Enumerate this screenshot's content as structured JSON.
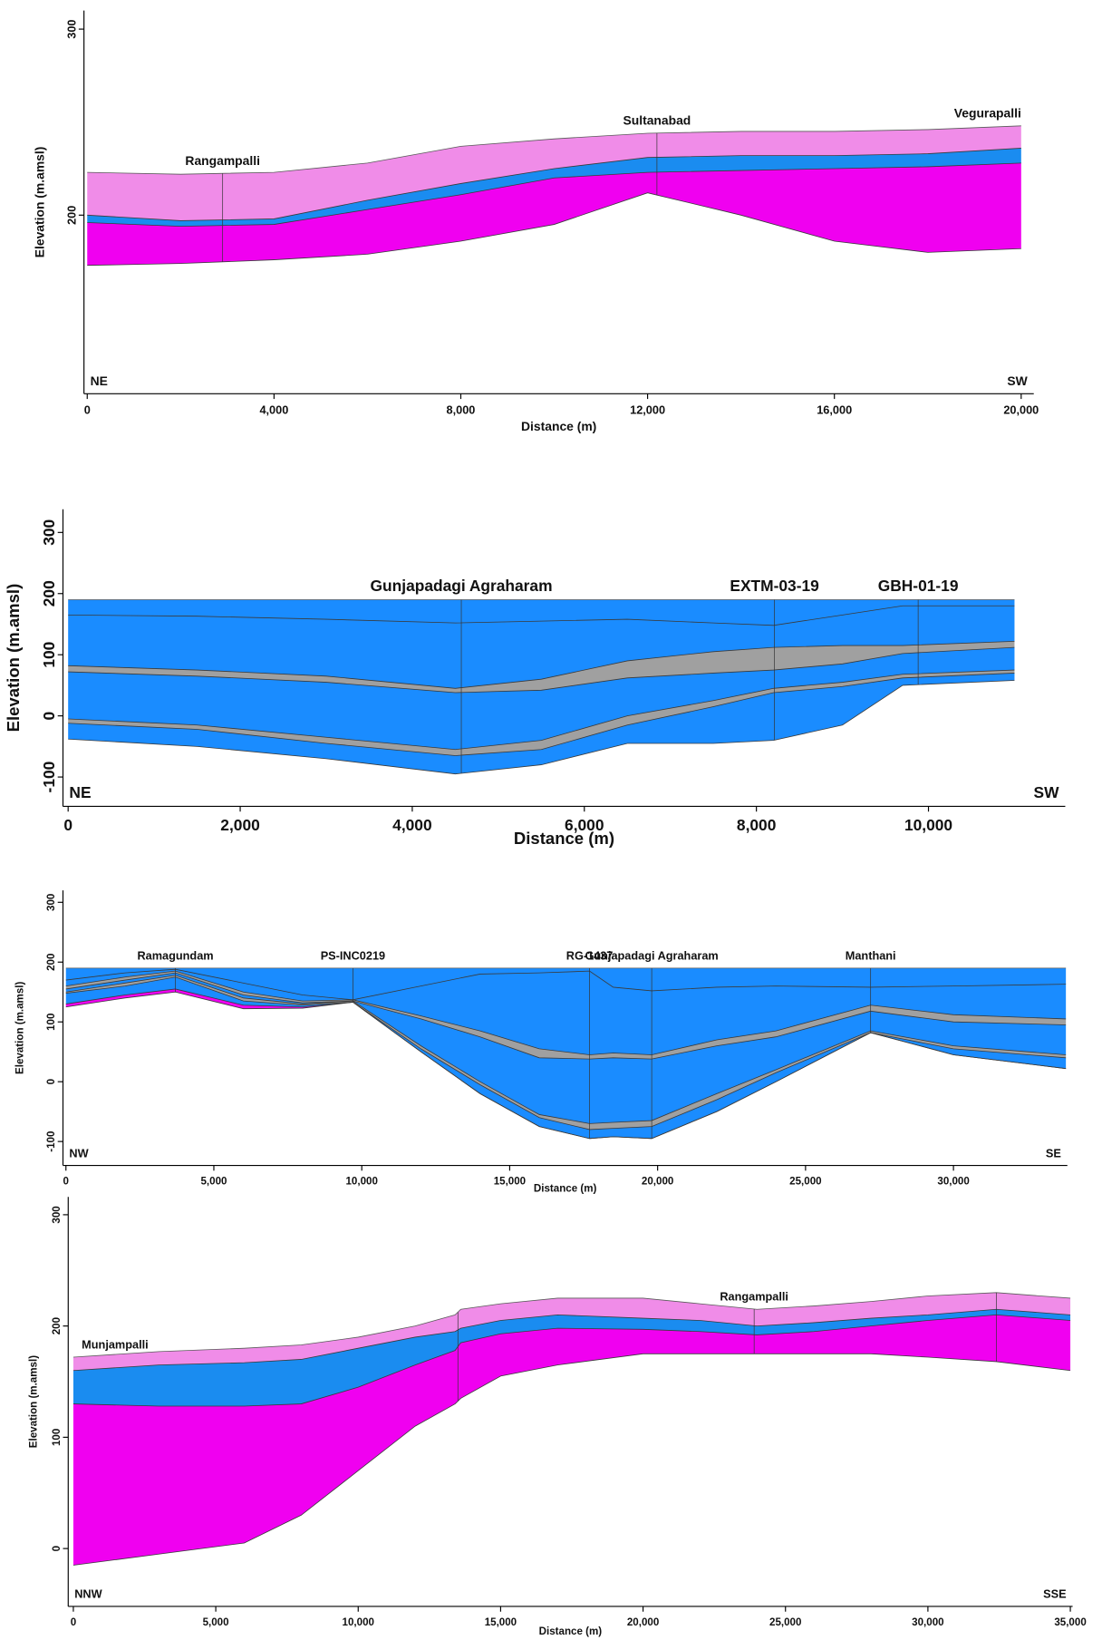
{
  "chart_data": [
    {
      "type": "area",
      "xlabel": "Distance (m)",
      "ylabel": "Elevation (m.amsl)",
      "xlim": [
        -70,
        20270
      ],
      "ylim": [
        104,
        310
      ],
      "xticks": [
        0,
        {
          "value": 4000,
          "label": "4,000"
        },
        {
          "value": 8000,
          "label": "8,000"
        },
        {
          "value": 12000,
          "label": "12,000"
        },
        {
          "value": 16000,
          "label": "16,000"
        },
        {
          "value": 20000,
          "label": "20,000"
        }
      ],
      "yticks": [
        200,
        300
      ],
      "x": [
        0,
        2000,
        4000,
        6000,
        8000,
        10000,
        12000,
        14000,
        16000,
        18000,
        20000
      ],
      "series": [
        {
          "color": "#f08ce8",
          "values": [
            223,
            222,
            223,
            228,
            237,
            241,
            244,
            245,
            245,
            246,
            248
          ]
        },
        {
          "color": "#1a8cf0",
          "values": [
            200,
            197,
            198,
            208,
            217,
            225,
            231,
            232,
            232,
            233,
            236
          ]
        },
        {
          "color": "#f000f0",
          "values": [
            196,
            194,
            195,
            203,
            211,
            220,
            223,
            224,
            225,
            226,
            228
          ]
        },
        {
          "values": [
            173,
            174,
            176,
            179,
            186,
            195,
            212,
            200,
            186,
            180,
            182
          ]
        }
      ],
      "wells": [
        {
          "x": 2900,
          "label": "Rangampalli"
        },
        {
          "x": 12200,
          "label": "Sultanabad"
        },
        {
          "x": 20000,
          "label": "Vegurapalli"
        }
      ],
      "direction_labels": [
        "NE",
        "SW"
      ]
    },
    {
      "type": "area",
      "xlabel": "Distance (m)",
      "ylabel": "Elevation (m.amsl)",
      "xlim": [
        -60,
        11590
      ],
      "ylim": [
        -148,
        338
      ],
      "xticks": [
        0,
        {
          "value": 2000,
          "label": "2,000"
        },
        {
          "value": 4000,
          "label": "4,000"
        },
        {
          "value": 6000,
          "label": "6,000"
        },
        {
          "value": 8000,
          "label": "8,000"
        },
        {
          "value": 10000,
          "label": "10,000"
        }
      ],
      "yticks": [
        -100,
        0,
        100,
        200,
        300
      ],
      "x": [
        0,
        1500,
        3000,
        4500,
        5500,
        6500,
        7500,
        8200,
        9000,
        9700,
        11000
      ],
      "series": [
        {
          "color": "#1a8cff",
          "values": [
            190,
            190,
            190,
            190,
            190,
            190,
            190,
            190,
            190,
            190,
            190
          ]
        },
        {
          "color": "#1a8cff",
          "values": [
            165,
            163,
            158,
            152,
            155,
            158,
            152,
            148,
            165,
            180,
            180
          ]
        },
        {
          "color": "#a0a0a0",
          "values": [
            82,
            75,
            65,
            45,
            60,
            90,
            105,
            112,
            115,
            115,
            122
          ]
        },
        {
          "color": "#1a8cff",
          "values": [
            72,
            65,
            55,
            38,
            42,
            62,
            70,
            75,
            85,
            102,
            112
          ]
        },
        {
          "color": "#a0a0a0",
          "values": [
            -5,
            -15,
            -35,
            -55,
            -40,
            0,
            25,
            45,
            55,
            68,
            75
          ]
        },
        {
          "color": "#1a8cff",
          "values": [
            -12,
            -22,
            -45,
            -65,
            -55,
            -15,
            15,
            38,
            48,
            62,
            70
          ]
        },
        {
          "values": [
            -38,
            -50,
            -70,
            -95,
            -80,
            -45,
            -45,
            -40,
            -15,
            50,
            58
          ]
        }
      ],
      "wells": [
        {
          "x": 4570,
          "label": "Gunjapadagi Agraharam"
        },
        {
          "x": 8210,
          "label": "EXTM-03-19"
        },
        {
          "x": 9880,
          "label": "GBH-01-19"
        }
      ],
      "direction_labels": [
        "NE",
        "SW"
      ]
    },
    {
      "type": "area",
      "xlabel": "Distance (m)",
      "ylabel": "Elevation (m.amsl)",
      "xlim": [
        -100,
        33850
      ],
      "ylim": [
        -140,
        320
      ],
      "xticks": [
        0,
        {
          "value": 5000,
          "label": "5,000"
        },
        {
          "value": 10000,
          "label": "10,000"
        },
        {
          "value": 15000,
          "label": "15,000"
        },
        {
          "value": 20000,
          "label": "20,000"
        },
        {
          "value": 25000,
          "label": "25,000"
        },
        {
          "value": 30000,
          "label": "30,000"
        }
      ],
      "yticks": [
        -100,
        0,
        100,
        200,
        300
      ],
      "x": [
        0,
        2000,
        3700,
        6000,
        8000,
        9700,
        12000,
        14000,
        16000,
        17700,
        18500,
        19800,
        22000,
        24000,
        27200,
        30000,
        33800
      ],
      "series": [
        {
          "color": "#1a8cff",
          "values": [
            190,
            190,
            190,
            190,
            190,
            190,
            190,
            190,
            190,
            190,
            190,
            190,
            190,
            190,
            190,
            190,
            190
          ]
        },
        {
          "color": "#1a8cff",
          "values": [
            170,
            182,
            188,
            165,
            145,
            137,
            160,
            180,
            182,
            185,
            158,
            152,
            158,
            160,
            158,
            160,
            163
          ]
        },
        {
          "color": "#a0a0a0",
          "values": [
            160,
            175,
            185,
            150,
            135,
            137,
            110,
            85,
            55,
            45,
            48,
            45,
            70,
            85,
            128,
            112,
            105
          ]
        },
        {
          "color": "#1a8cff",
          "values": [
            155,
            170,
            182,
            145,
            132,
            135,
            105,
            75,
            40,
            38,
            40,
            38,
            60,
            75,
            118,
            100,
            95
          ]
        },
        {
          "color": "#a0a0a0",
          "values": [
            150,
            165,
            178,
            140,
            130,
            135,
            60,
            0,
            -55,
            -70,
            -68,
            -65,
            -20,
            20,
            85,
            60,
            45
          ]
        },
        {
          "color": "#1a8cff",
          "values": [
            148,
            160,
            175,
            135,
            128,
            133,
            55,
            -5,
            -60,
            -80,
            -78,
            -75,
            -30,
            15,
            82,
            55,
            40
          ]
        },
        {
          "color": "#f000f0",
          "values": [
            130,
            145,
            155,
            128,
            125,
            133,
            50,
            -20,
            -75,
            -95,
            -92,
            -95,
            -50,
            0,
            82,
            45,
            22
          ]
        },
        {
          "values": [
            125,
            140,
            150,
            122,
            123,
            133,
            50,
            -20,
            -75,
            -95,
            -92,
            -95,
            -50,
            0,
            82,
            45,
            22
          ]
        }
      ],
      "wells": [
        {
          "x": 3700,
          "label": "Ramagundam"
        },
        {
          "x": 9700,
          "label": "PS-INC0219"
        },
        {
          "x": 17700,
          "label": "RG-1437"
        },
        {
          "x": 19800,
          "label": "Gunjapadagi Agraharam"
        },
        {
          "x": 27200,
          "label": "Manthani"
        }
      ],
      "direction_labels": [
        "NW",
        "SE"
      ]
    },
    {
      "type": "area",
      "xlabel": "Distance (m)",
      "ylabel": "Elevation (m.amsl)",
      "xlim": [
        -180,
        35080
      ],
      "ylim": [
        -52,
        316
      ],
      "xticks": [
        0,
        {
          "value": 5000,
          "label": "5,000"
        },
        {
          "value": 10000,
          "label": "10,000"
        },
        {
          "value": 15000,
          "label": "15,000"
        },
        {
          "value": 20000,
          "label": "20,000"
        },
        {
          "value": 25000,
          "label": "25,000"
        },
        {
          "value": 30000,
          "label": "30,000"
        },
        {
          "value": 35000,
          "label": "35,000"
        }
      ],
      "yticks": [
        0,
        100,
        200,
        300
      ],
      "x": [
        0,
        3000,
        6000,
        8000,
        10000,
        12000,
        13400,
        13600,
        15000,
        17000,
        20000,
        22000,
        24000,
        26000,
        28000,
        30000,
        32400,
        35000
      ],
      "series": [
        {
          "color": "#f08ce8",
          "values": [
            172,
            177,
            180,
            183,
            190,
            200,
            210,
            215,
            220,
            225,
            225,
            220,
            215,
            218,
            222,
            227,
            230,
            225
          ]
        },
        {
          "color": "#1a8cf0",
          "values": [
            160,
            165,
            167,
            170,
            180,
            190,
            195,
            198,
            205,
            210,
            207,
            205,
            200,
            203,
            207,
            210,
            215,
            210
          ]
        },
        {
          "color": "#f000f0",
          "values": [
            130,
            128,
            128,
            130,
            145,
            165,
            178,
            185,
            193,
            198,
            197,
            195,
            192,
            195,
            200,
            205,
            210,
            205
          ]
        },
        {
          "values": [
            -15,
            -5,
            5,
            30,
            70,
            110,
            130,
            135,
            155,
            165,
            175,
            175,
            175,
            175,
            175,
            172,
            168,
            160
          ]
        }
      ],
      "wells": [
        {
          "x": 0,
          "label": "Munjampalli"
        },
        {
          "x": 13500,
          "label": null
        },
        {
          "x": 23900,
          "label": "Rangampalli"
        },
        {
          "x": 32400,
          "label": null
        }
      ],
      "direction_labels": [
        "NNW",
        "SSE"
      ]
    }
  ]
}
